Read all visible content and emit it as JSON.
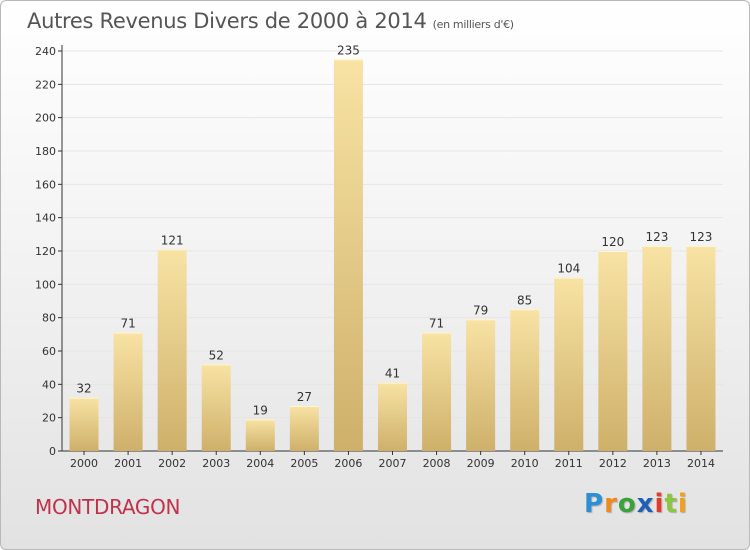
{
  "header": {
    "title": "Autres Revenus Divers de 2000 à 2014",
    "subtitle": "(en milliers d'€)"
  },
  "footer": {
    "town": "MONTDRAGON",
    "logo_text": "Proxiti",
    "logo_letters": [
      {
        "char": "P",
        "color": "#2a8fd4"
      },
      {
        "char": "r",
        "color": "#f08a1c"
      },
      {
        "char": "o",
        "color": "#3aa23a"
      },
      {
        "char": "x",
        "color": "#1f5fb5"
      },
      {
        "char": "i",
        "color": "#e23a2e"
      },
      {
        "char": "t",
        "color": "#8cc63e"
      },
      {
        "char": "i",
        "color": "#f0a01c"
      }
    ]
  },
  "colors": {
    "bar_light": "#f8e3a4",
    "bar_dark": "#ceb06a",
    "grid": "#e6e6e6",
    "axis": "#333333",
    "town": "#c0324c"
  },
  "chart_data": {
    "type": "bar",
    "title": "Autres Revenus Divers de 2000 à 2014",
    "subtitle": "(en milliers d'€)",
    "categories": [
      "2000",
      "2001",
      "2002",
      "2003",
      "2004",
      "2005",
      "2006",
      "2007",
      "2008",
      "2009",
      "2010",
      "2011",
      "2012",
      "2013",
      "2014"
    ],
    "values": [
      32,
      71,
      121,
      52,
      19,
      27,
      235,
      41,
      71,
      79,
      85,
      104,
      120,
      123,
      123
    ],
    "ylim": [
      0,
      240
    ],
    "yticks": [
      0,
      20,
      40,
      60,
      80,
      100,
      120,
      140,
      160,
      180,
      200,
      220,
      240
    ],
    "grid": true,
    "data_labels": true
  }
}
